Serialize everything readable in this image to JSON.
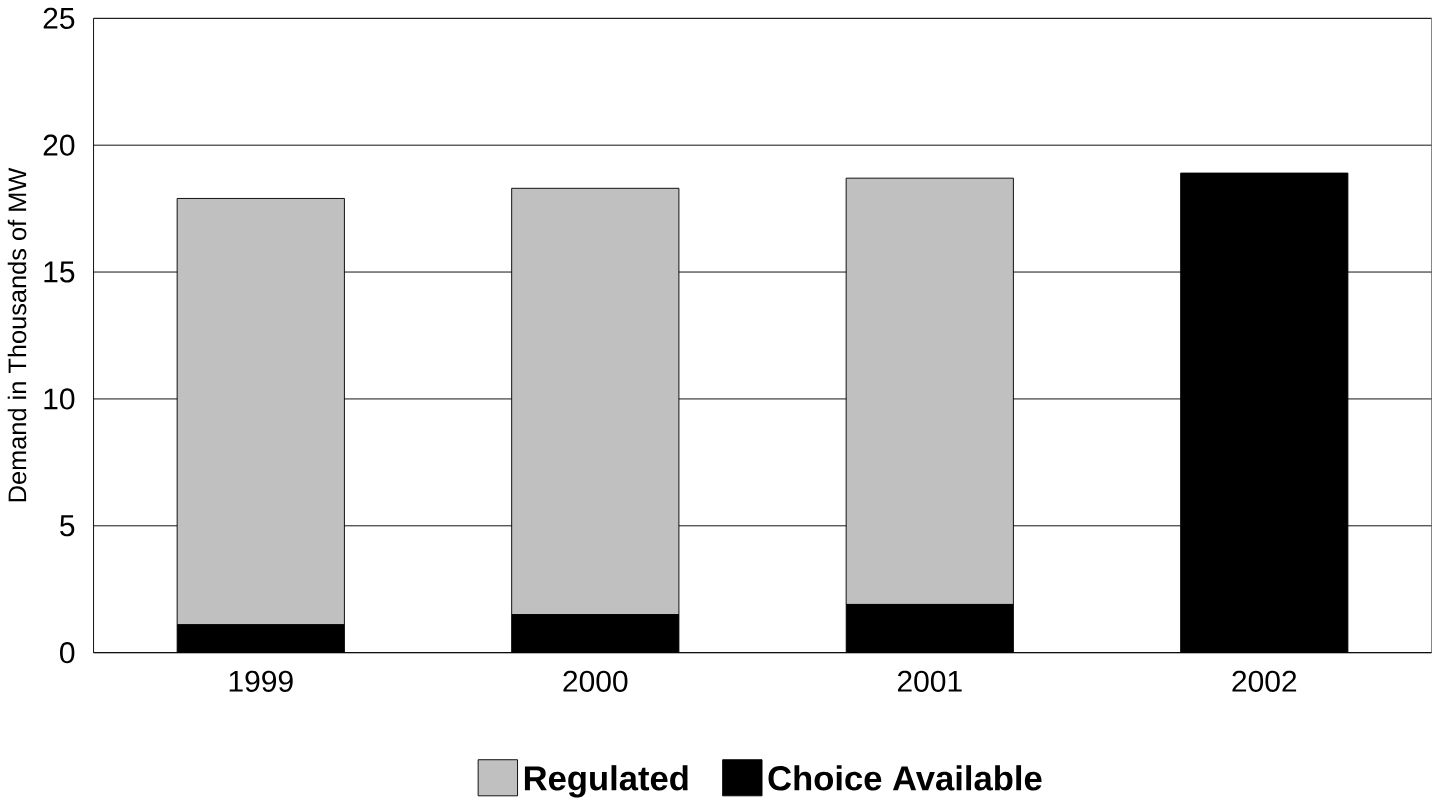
{
  "chart_data": {
    "type": "bar",
    "stacked": true,
    "ylabel": "Demand in Thousands of MW",
    "categories": [
      "1999",
      "2000",
      "2001",
      "2002"
    ],
    "series": [
      {
        "name": "Choice Available",
        "color": "#000000",
        "values": [
          1.1,
          1.5,
          1.9,
          18.9
        ]
      },
      {
        "name": "Regulated",
        "color": "#c0c0c0",
        "values": [
          16.8,
          16.8,
          16.8,
          null
        ]
      }
    ],
    "ylim": [
      0,
      25
    ],
    "yticks": [
      0,
      5,
      10,
      15,
      20,
      25
    ],
    "grid": "y",
    "legend": "bottom"
  }
}
